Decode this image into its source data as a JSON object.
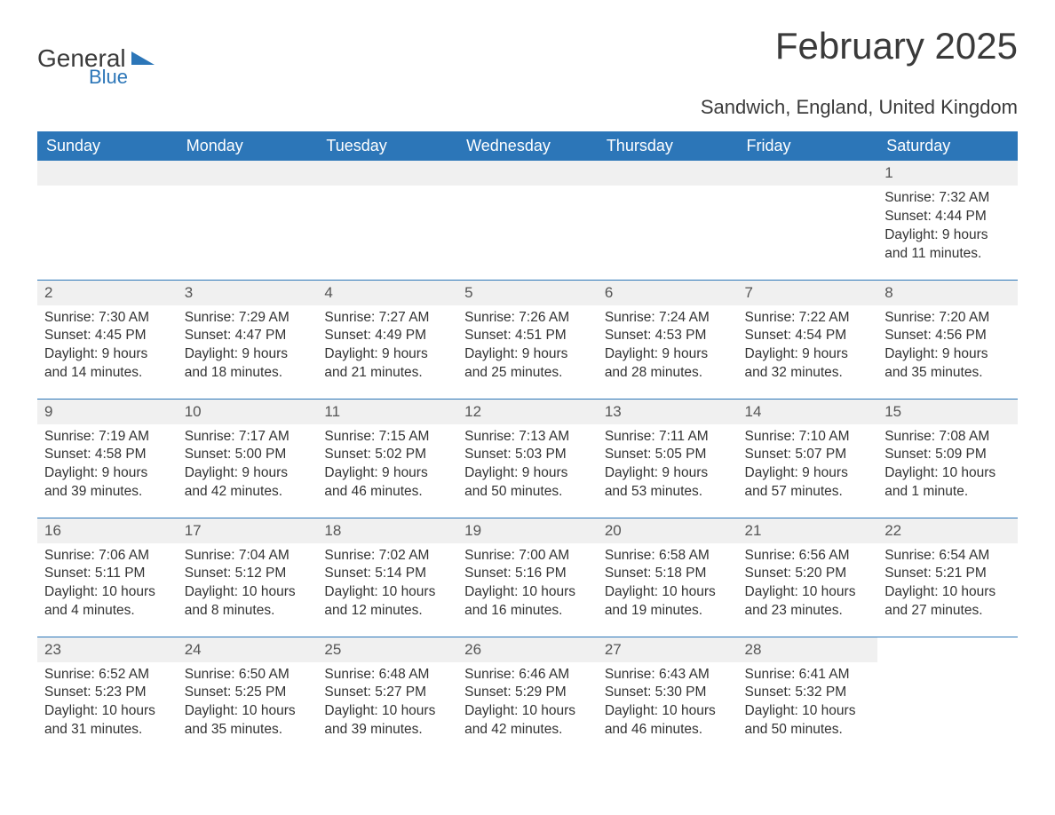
{
  "logo": {
    "word1": "General",
    "word2": "Blue",
    "accent_color": "#2c76b8"
  },
  "title": "February 2025",
  "subtitle": "Sandwich, England, United Kingdom",
  "header_bg": "#2c76b8",
  "daynum_bg": "#f0f0f0",
  "columns": [
    "Sunday",
    "Monday",
    "Tuesday",
    "Wednesday",
    "Thursday",
    "Friday",
    "Saturday"
  ],
  "weeks": [
    [
      null,
      null,
      null,
      null,
      null,
      null,
      {
        "n": "1",
        "sunrise": "7:32 AM",
        "sunset": "4:44 PM",
        "dayh": "9",
        "daym": "11"
      }
    ],
    [
      {
        "n": "2",
        "sunrise": "7:30 AM",
        "sunset": "4:45 PM",
        "dayh": "9",
        "daym": "14"
      },
      {
        "n": "3",
        "sunrise": "7:29 AM",
        "sunset": "4:47 PM",
        "dayh": "9",
        "daym": "18"
      },
      {
        "n": "4",
        "sunrise": "7:27 AM",
        "sunset": "4:49 PM",
        "dayh": "9",
        "daym": "21"
      },
      {
        "n": "5",
        "sunrise": "7:26 AM",
        "sunset": "4:51 PM",
        "dayh": "9",
        "daym": "25"
      },
      {
        "n": "6",
        "sunrise": "7:24 AM",
        "sunset": "4:53 PM",
        "dayh": "9",
        "daym": "28"
      },
      {
        "n": "7",
        "sunrise": "7:22 AM",
        "sunset": "4:54 PM",
        "dayh": "9",
        "daym": "32"
      },
      {
        "n": "8",
        "sunrise": "7:20 AM",
        "sunset": "4:56 PM",
        "dayh": "9",
        "daym": "35"
      }
    ],
    [
      {
        "n": "9",
        "sunrise": "7:19 AM",
        "sunset": "4:58 PM",
        "dayh": "9",
        "daym": "39"
      },
      {
        "n": "10",
        "sunrise": "7:17 AM",
        "sunset": "5:00 PM",
        "dayh": "9",
        "daym": "42"
      },
      {
        "n": "11",
        "sunrise": "7:15 AM",
        "sunset": "5:02 PM",
        "dayh": "9",
        "daym": "46"
      },
      {
        "n": "12",
        "sunrise": "7:13 AM",
        "sunset": "5:03 PM",
        "dayh": "9",
        "daym": "50"
      },
      {
        "n": "13",
        "sunrise": "7:11 AM",
        "sunset": "5:05 PM",
        "dayh": "9",
        "daym": "53"
      },
      {
        "n": "14",
        "sunrise": "7:10 AM",
        "sunset": "5:07 PM",
        "dayh": "9",
        "daym": "57"
      },
      {
        "n": "15",
        "sunrise": "7:08 AM",
        "sunset": "5:09 PM",
        "dayh": "10",
        "daym": "1"
      }
    ],
    [
      {
        "n": "16",
        "sunrise": "7:06 AM",
        "sunset": "5:11 PM",
        "dayh": "10",
        "daym": "4"
      },
      {
        "n": "17",
        "sunrise": "7:04 AM",
        "sunset": "5:12 PM",
        "dayh": "10",
        "daym": "8"
      },
      {
        "n": "18",
        "sunrise": "7:02 AM",
        "sunset": "5:14 PM",
        "dayh": "10",
        "daym": "12"
      },
      {
        "n": "19",
        "sunrise": "7:00 AM",
        "sunset": "5:16 PM",
        "dayh": "10",
        "daym": "16"
      },
      {
        "n": "20",
        "sunrise": "6:58 AM",
        "sunset": "5:18 PM",
        "dayh": "10",
        "daym": "19"
      },
      {
        "n": "21",
        "sunrise": "6:56 AM",
        "sunset": "5:20 PM",
        "dayh": "10",
        "daym": "23"
      },
      {
        "n": "22",
        "sunrise": "6:54 AM",
        "sunset": "5:21 PM",
        "dayh": "10",
        "daym": "27"
      }
    ],
    [
      {
        "n": "23",
        "sunrise": "6:52 AM",
        "sunset": "5:23 PM",
        "dayh": "10",
        "daym": "31"
      },
      {
        "n": "24",
        "sunrise": "6:50 AM",
        "sunset": "5:25 PM",
        "dayh": "10",
        "daym": "35"
      },
      {
        "n": "25",
        "sunrise": "6:48 AM",
        "sunset": "5:27 PM",
        "dayh": "10",
        "daym": "39"
      },
      {
        "n": "26",
        "sunrise": "6:46 AM",
        "sunset": "5:29 PM",
        "dayh": "10",
        "daym": "42"
      },
      {
        "n": "27",
        "sunrise": "6:43 AM",
        "sunset": "5:30 PM",
        "dayh": "10",
        "daym": "46"
      },
      {
        "n": "28",
        "sunrise": "6:41 AM",
        "sunset": "5:32 PM",
        "dayh": "10",
        "daym": "50"
      },
      null
    ]
  ],
  "labels": {
    "sunrise_pre": "Sunrise: ",
    "sunset_pre": "Sunset: ",
    "daylight_pre": "Daylight: ",
    "hours_word": " hours",
    "and_word": "and ",
    "min1_word": " minute.",
    "min_word": " minutes."
  }
}
